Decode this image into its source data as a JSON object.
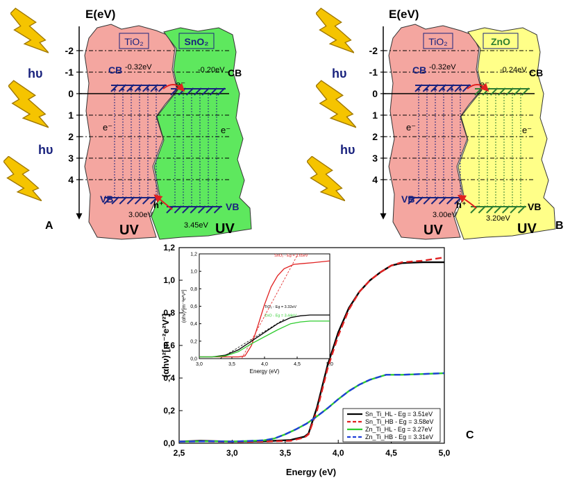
{
  "panel_a": {
    "letter": "A",
    "axis_title": "E(eV)",
    "ticks": [
      {
        "label": "-2",
        "value": -2
      },
      {
        "label": "-1",
        "value": -1
      },
      {
        "label": "0",
        "value": 0
      },
      {
        "label": "1",
        "value": 1
      },
      {
        "label": "2",
        "value": 2
      },
      {
        "label": "3",
        "value": 3
      },
      {
        "label": "4",
        "value": 4
      }
    ],
    "hv1": "hυ",
    "hv2": "hυ",
    "left_material": "TiO₂",
    "right_material": "SnO₂",
    "cb_label": "CB",
    "vb_label": "VB",
    "cb_label_right": "CB",
    "vb_label_right": "VB",
    "left_cb_energy": "-0.32eV",
    "right_cb_energy": "-0.20eV",
    "left_gap": "3.00eV",
    "right_gap": "3.45eV",
    "e_transfer": "e⁻",
    "e_left": "e⁻",
    "e_right": "e⁻",
    "hole": "h⁺",
    "uv_left": "UV",
    "uv_right": "UV",
    "colors": {
      "left_fill": "#f4a6a0",
      "right_fill": "#5ee85e",
      "hatch": "#1a237e"
    }
  },
  "panel_b": {
    "letter": "B",
    "axis_title": "E(eV)",
    "ticks": [
      {
        "label": "-2",
        "value": -2
      },
      {
        "label": "-1",
        "value": -1
      },
      {
        "label": "0",
        "value": 0
      },
      {
        "label": "1",
        "value": 1
      },
      {
        "label": "2",
        "value": 2
      },
      {
        "label": "3",
        "value": 3
      },
      {
        "label": "4",
        "value": 4
      }
    ],
    "hv1": "hυ",
    "hv2": "hυ",
    "left_material": "TiO₂",
    "right_material": "ZnO",
    "cb_label": "CB",
    "vb_label": "VB",
    "cb_label_right": "CB",
    "vb_label_right": "VB",
    "left_cb_energy": "-0.32eV",
    "right_cb_energy": "-0.24eV",
    "left_gap": "3.00eV",
    "right_gap": "3.20eV",
    "e_transfer": "e⁻",
    "e_left": "e⁻",
    "e_right": "e⁻",
    "hole": "h⁺",
    "uv_left": "UV",
    "uv_right": "UV",
    "colors": {
      "left_fill": "#f4a6a0",
      "right_fill": "#ffff88",
      "hatch": "#1a237e",
      "hatch_right": "#2e7d32"
    }
  },
  "panel_c": {
    "letter": "C",
    "chart_data": {
      "type": "line",
      "xlabel": "Energy (eV)",
      "ylabel": "(αhν)²[m⁻²e²V²]",
      "xlim": [
        2.5,
        5.0
      ],
      "ylim": [
        0,
        1.2
      ],
      "xticks": [
        "2,5",
        "3,0",
        "3,5",
        "4,0",
        "4,5",
        "5,0"
      ],
      "yticks": [
        "0,0",
        "0,2",
        "0,4",
        "0,6",
        "0,8",
        "1,0",
        "1,2"
      ],
      "series": [
        {
          "name": "Sn_Ti_HL - Eg = 3.51eV",
          "color": "#000000",
          "dash": "solid",
          "x": [
            2.5,
            2.7,
            3.0,
            3.3,
            3.55,
            3.68,
            3.72,
            3.8,
            3.9,
            4.0,
            4.1,
            4.2,
            4.3,
            4.4,
            4.5,
            4.6,
            4.7,
            4.8,
            5.0
          ],
          "y": [
            0.01,
            0.015,
            0.01,
            0.012,
            0.02,
            0.04,
            0.06,
            0.22,
            0.48,
            0.68,
            0.83,
            0.93,
            1.0,
            1.05,
            1.09,
            1.105,
            1.108,
            1.11,
            1.11
          ]
        },
        {
          "name": "Sn_Ti_HB - Eg = 3.58eV",
          "color": "#e02020",
          "dash": "dashed",
          "x": [
            2.5,
            2.7,
            3.0,
            3.3,
            3.55,
            3.68,
            3.72,
            3.8,
            3.9,
            4.0,
            4.1,
            4.2,
            4.3,
            4.4,
            4.5,
            4.6,
            4.7,
            4.8,
            5.0
          ],
          "y": [
            0.01,
            0.012,
            0.008,
            0.01,
            0.015,
            0.035,
            0.055,
            0.2,
            0.46,
            0.66,
            0.82,
            0.93,
            1.0,
            1.05,
            1.09,
            1.11,
            1.115,
            1.12,
            1.14
          ]
        },
        {
          "name": "Zn_Ti_HL - Eg = 3.27eV",
          "color": "#2ecc2e",
          "dash": "solid",
          "x": [
            2.5,
            2.8,
            3.0,
            3.2,
            3.3,
            3.4,
            3.5,
            3.6,
            3.7,
            3.8,
            3.9,
            4.0,
            4.1,
            4.2,
            4.3,
            4.45,
            4.6,
            5.0
          ],
          "y": [
            0.01,
            0.012,
            0.01,
            0.015,
            0.018,
            0.03,
            0.055,
            0.085,
            0.12,
            0.165,
            0.215,
            0.27,
            0.32,
            0.36,
            0.39,
            0.42,
            0.42,
            0.43
          ]
        },
        {
          "name": "Zn_Ti_HB - Eg = 3.31eV",
          "color": "#1f3fd8",
          "dash": "dashed",
          "x": [
            2.5,
            2.8,
            3.0,
            3.2,
            3.3,
            3.4,
            3.5,
            3.6,
            3.7,
            3.8,
            3.9,
            4.0,
            4.1,
            4.2,
            4.3,
            4.45,
            4.6,
            5.0
          ],
          "y": [
            0.01,
            0.012,
            0.01,
            0.015,
            0.018,
            0.03,
            0.055,
            0.085,
            0.12,
            0.165,
            0.215,
            0.27,
            0.32,
            0.36,
            0.39,
            0.42,
            0.42,
            0.43
          ]
        }
      ],
      "inset": {
        "xlabel": "Energy (eV)",
        "ylabel": "(αhν)²[m⁻²e²V²]",
        "xlim": [
          3.0,
          5.0
        ],
        "ylim": [
          0,
          1.2
        ],
        "xticks": [
          "3,0",
          "3,5",
          "4,0",
          "4,5",
          "5,0"
        ],
        "yticks": [
          "0,0",
          "0,2",
          "0,4",
          "0,6",
          "0,8",
          "1,0",
          "1,2"
        ],
        "series": [
          {
            "name": "SnO₂ - Eg = 3.65eV",
            "color": "#e02020",
            "x": [
              3.0,
              3.3,
              3.6,
              3.7,
              3.8,
              3.9,
              4.0,
              4.1,
              4.2,
              4.3,
              4.45,
              4.6,
              4.75,
              5.0
            ],
            "y": [
              0.02,
              0.02,
              0.02,
              0.03,
              0.15,
              0.38,
              0.62,
              0.82,
              0.95,
              1.03,
              1.08,
              1.09,
              1.1,
              1.12
            ]
          },
          {
            "name": "TiO₂ - Eg = 3.32eV",
            "color": "#000000",
            "x": [
              3.0,
              3.2,
              3.4,
              3.6,
              3.8,
              4.0,
              4.2,
              4.4,
              4.55,
              4.7,
              5.0
            ],
            "y": [
              0.02,
              0.02,
              0.04,
              0.1,
              0.2,
              0.3,
              0.4,
              0.47,
              0.49,
              0.5,
              0.5
            ]
          },
          {
            "name": "ZnO - Eg = 3.44eV",
            "color": "#2ecc2e",
            "x": [
              3.0,
              3.2,
              3.4,
              3.6,
              3.8,
              4.0,
              4.2,
              4.4,
              4.55,
              4.7,
              5.0
            ],
            "y": [
              0.02,
              0.02,
              0.03,
              0.08,
              0.17,
              0.25,
              0.33,
              0.4,
              0.42,
              0.43,
              0.43
            ]
          }
        ],
        "tangents": [
          {
            "color": "#e02020",
            "x": [
              3.65,
              4.5
            ],
            "y": [
              0.0,
              1.18
            ]
          },
          {
            "color": "#000000",
            "x": [
              3.32,
              4.3
            ],
            "y": [
              0.0,
              0.45
            ]
          }
        ]
      }
    }
  }
}
